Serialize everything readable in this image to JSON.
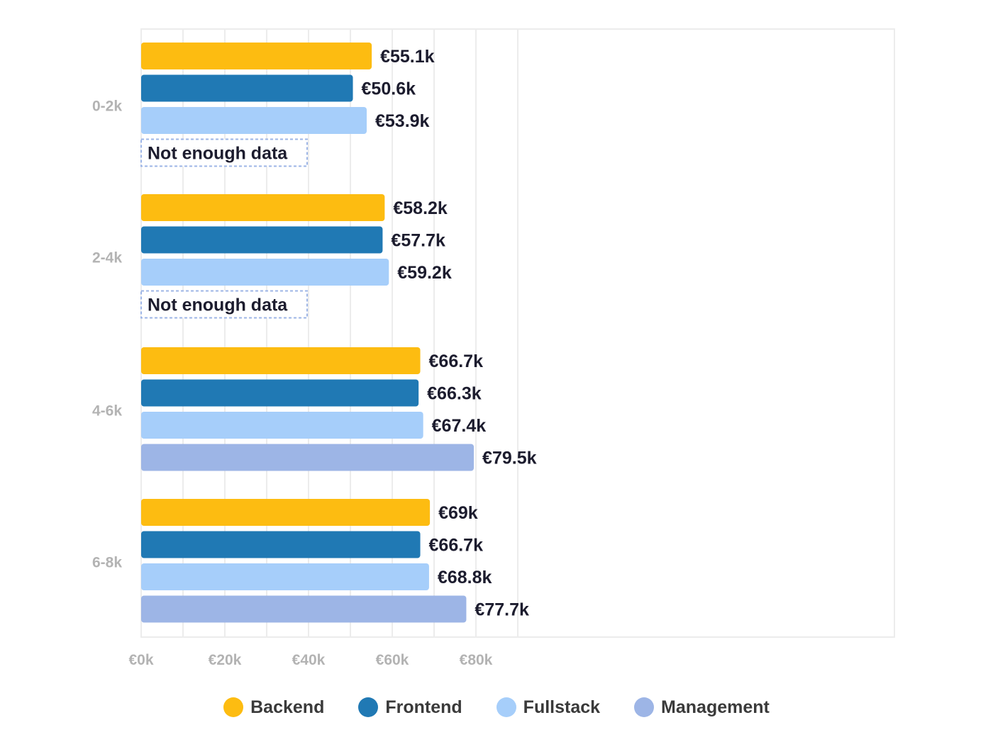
{
  "chart_data": {
    "type": "bar",
    "orientation": "horizontal",
    "categories": [
      "0-2k",
      "2-4k",
      "4-6k",
      "6-8k"
    ],
    "series": [
      {
        "name": "Backend",
        "values": [
          55.1,
          58.2,
          66.7,
          69
        ],
        "labels": [
          "€55.1k",
          "€58.2k",
          "€66.7k",
          "€69k"
        ]
      },
      {
        "name": "Frontend",
        "values": [
          50.6,
          57.7,
          66.3,
          66.7
        ],
        "labels": [
          "€50.6k",
          "€57.7k",
          "€66.3k",
          "€66.7k"
        ]
      },
      {
        "name": "Fullstack",
        "values": [
          53.9,
          59.2,
          67.4,
          68.8
        ],
        "labels": [
          "€53.9k",
          "€59.2k",
          "€67.4k",
          "€68.8k"
        ]
      },
      {
        "name": "Management",
        "values": [
          null,
          null,
          79.5,
          77.7
        ],
        "labels": [
          null,
          null,
          "€79.5k",
          "€77.7k"
        ]
      }
    ],
    "missing_label": "Not enough data",
    "x_ticks": [
      {
        "value": 0,
        "label": "€0k"
      },
      {
        "value": 20,
        "label": "€20k"
      },
      {
        "value": 40,
        "label": "€40k"
      },
      {
        "value": 60,
        "label": "€60k"
      },
      {
        "value": 80,
        "label": "€80k"
      }
    ],
    "xlim": [
      0,
      90
    ],
    "grid": true,
    "legend_placement": "bottom-center",
    "colors": {
      "Backend": "#fdbc11",
      "Frontend": "#2079b4",
      "Fullstack": "#a6cefa",
      "Management": "#9db5e6",
      "grid": "#ececec",
      "tick_label": "#b3b3b3",
      "value_label": "#1c1c2e",
      "missing_border": "#9db5e6"
    }
  }
}
